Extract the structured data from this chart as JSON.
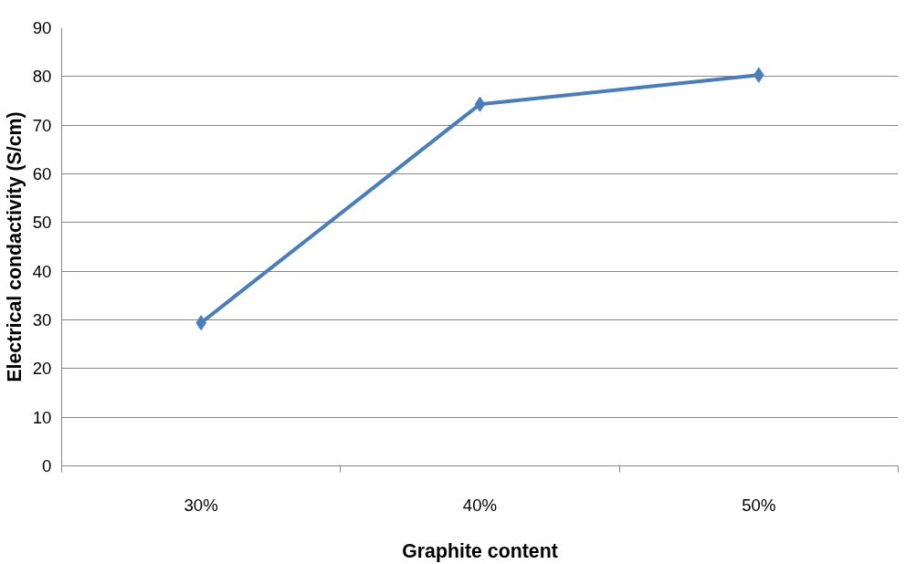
{
  "chart_data": {
    "type": "line",
    "categories": [
      "30%",
      "40%",
      "50%"
    ],
    "series": [
      {
        "color": "#4a7ebb",
        "values": [
          29.4,
          74.3,
          80.3
        ]
      }
    ],
    "xlabel": "Graphite content",
    "ylabel": "Electrical condactivity (S/cm)",
    "ylim": [
      0,
      90
    ],
    "yticks": [
      0,
      10,
      20,
      30,
      40,
      50,
      60,
      70,
      80,
      90
    ],
    "grid": "y",
    "marker": "diamond",
    "line_style": "solid"
  }
}
